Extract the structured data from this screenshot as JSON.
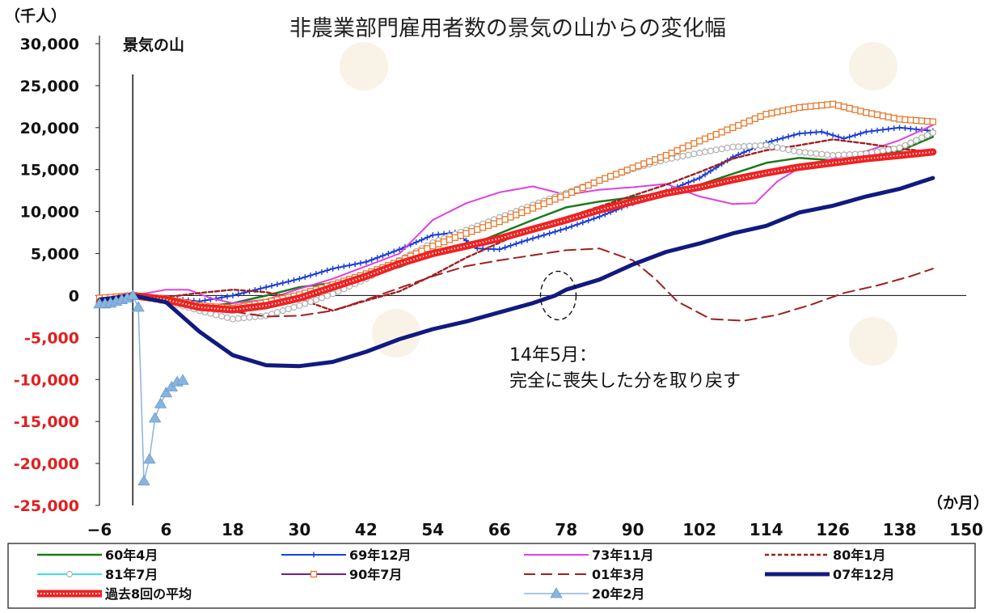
{
  "chart_data": {
    "type": "line",
    "title": "非農業部門雇用者数の景気の山からの変化幅",
    "ylabel": "（千人）",
    "xlabel": "（か月）",
    "peak_label": "景気の山",
    "xlim": [
      -6,
      150
    ],
    "ylim": [
      -25000,
      30000
    ],
    "x_ticks": [
      "−6",
      "6",
      "18",
      "30",
      "42",
      "54",
      "66",
      "78",
      "90",
      "102",
      "114",
      "126",
      "138",
      "150"
    ],
    "x_tick_values": [
      -6,
      6,
      18,
      30,
      42,
      54,
      66,
      78,
      90,
      102,
      114,
      126,
      138,
      150
    ],
    "y_ticks": [
      {
        "value": 30000,
        "label": "30,000"
      },
      {
        "value": 25000,
        "label": "25,000"
      },
      {
        "value": 20000,
        "label": "20,000"
      },
      {
        "value": 15000,
        "label": "15,000"
      },
      {
        "value": 10000,
        "label": "10,000"
      },
      {
        "value": 5000,
        "label": "5,000"
      },
      {
        "value": 0,
        "label": "0"
      },
      {
        "value": -5000,
        "label": "-5,000"
      },
      {
        "value": -10000,
        "label": "-10,000"
      },
      {
        "value": -15000,
        "label": "-15,000"
      },
      {
        "value": -20000,
        "label": "-20,000"
      },
      {
        "value": -25000,
        "label": "-25,000"
      }
    ],
    "annotation": {
      "line1": "14年5月：",
      "line2": "完全に喪失した分を取り戻す",
      "x": 76,
      "y": 0
    },
    "series": [
      {
        "name": "60年4月",
        "color": "#1a7a1a",
        "style": "solid",
        "width": 2.5,
        "marker": "none",
        "points": [
          [
            -6,
            -1200
          ],
          [
            0,
            0
          ],
          [
            6,
            -500
          ],
          [
            12,
            -1400
          ],
          [
            18,
            -900
          ],
          [
            24,
            0
          ],
          [
            30,
            1000
          ],
          [
            36,
            1500
          ],
          [
            42,
            2400
          ],
          [
            48,
            3400
          ],
          [
            54,
            5000
          ],
          [
            60,
            5800
          ],
          [
            66,
            7400
          ],
          [
            72,
            9000
          ],
          [
            78,
            10500
          ],
          [
            84,
            11200
          ],
          [
            90,
            11700
          ],
          [
            96,
            12300
          ],
          [
            102,
            13200
          ],
          [
            108,
            14500
          ],
          [
            114,
            15800
          ],
          [
            120,
            16400
          ],
          [
            126,
            16100
          ],
          [
            132,
            16600
          ],
          [
            138,
            17200
          ],
          [
            144,
            18900
          ]
        ]
      },
      {
        "name": "69年12月",
        "color": "#1a3fd6",
        "style": "solid",
        "width": 2,
        "marker": "plus",
        "points": [
          [
            -6,
            -700
          ],
          [
            0,
            0
          ],
          [
            6,
            -300
          ],
          [
            12,
            -700
          ],
          [
            18,
            0
          ],
          [
            24,
            1000
          ],
          [
            30,
            2000
          ],
          [
            36,
            3200
          ],
          [
            42,
            4000
          ],
          [
            48,
            5500
          ],
          [
            54,
            7200
          ],
          [
            58,
            7500
          ],
          [
            62,
            5600
          ],
          [
            66,
            5500
          ],
          [
            70,
            6400
          ],
          [
            74,
            7200
          ],
          [
            78,
            8000
          ],
          [
            84,
            9400
          ],
          [
            90,
            11000
          ],
          [
            96,
            12400
          ],
          [
            102,
            14000
          ],
          [
            108,
            16500
          ],
          [
            114,
            18200
          ],
          [
            120,
            19300
          ],
          [
            124,
            19500
          ],
          [
            128,
            18700
          ],
          [
            132,
            19500
          ],
          [
            138,
            20000
          ],
          [
            144,
            19600
          ]
        ]
      },
      {
        "name": "73年11月",
        "color": "#e040e0",
        "style": "solid",
        "width": 2,
        "marker": "none",
        "points": [
          [
            -6,
            -900
          ],
          [
            0,
            0
          ],
          [
            6,
            700
          ],
          [
            10,
            700
          ],
          [
            14,
            -300
          ],
          [
            18,
            -900
          ],
          [
            24,
            -500
          ],
          [
            30,
            800
          ],
          [
            36,
            2000
          ],
          [
            42,
            3500
          ],
          [
            48,
            5000
          ],
          [
            54,
            9000
          ],
          [
            60,
            11000
          ],
          [
            66,
            12300
          ],
          [
            72,
            13000
          ],
          [
            78,
            12000
          ],
          [
            84,
            12600
          ],
          [
            90,
            12900
          ],
          [
            96,
            13300
          ],
          [
            102,
            11800
          ],
          [
            108,
            10900
          ],
          [
            112,
            11000
          ],
          [
            116,
            13600
          ],
          [
            120,
            15200
          ],
          [
            126,
            16300
          ],
          [
            132,
            17200
          ],
          [
            138,
            18500
          ],
          [
            144,
            20300
          ]
        ]
      },
      {
        "name": "80年1月",
        "color": "#a02020",
        "style": "dotted",
        "width": 2.4,
        "marker": "none",
        "points": [
          [
            -6,
            -600
          ],
          [
            0,
            0
          ],
          [
            6,
            -200
          ],
          [
            12,
            300
          ],
          [
            18,
            700
          ],
          [
            24,
            400
          ],
          [
            30,
            -400
          ],
          [
            36,
            -1800
          ],
          [
            42,
            -600
          ],
          [
            48,
            500
          ],
          [
            54,
            2400
          ],
          [
            60,
            4500
          ],
          [
            66,
            6300
          ],
          [
            72,
            8000
          ],
          [
            78,
            9300
          ],
          [
            84,
            10600
          ],
          [
            90,
            11900
          ],
          [
            96,
            13200
          ],
          [
            102,
            14700
          ],
          [
            108,
            16300
          ],
          [
            114,
            17300
          ],
          [
            120,
            17900
          ],
          [
            126,
            18600
          ],
          [
            132,
            18100
          ],
          [
            138,
            17500
          ],
          [
            144,
            17100
          ]
        ]
      },
      {
        "name": "81年7月",
        "color": "#40e0e0",
        "style": "solid",
        "width": 2,
        "marker": "circle",
        "points": [
          [
            -6,
            -1000
          ],
          [
            0,
            0
          ],
          [
            6,
            -700
          ],
          [
            12,
            -1800
          ],
          [
            18,
            -2800
          ],
          [
            24,
            -2400
          ],
          [
            30,
            -1200
          ],
          [
            36,
            200
          ],
          [
            42,
            2000
          ],
          [
            48,
            4200
          ],
          [
            54,
            6300
          ],
          [
            60,
            7800
          ],
          [
            66,
            9300
          ],
          [
            72,
            10800
          ],
          [
            78,
            12200
          ],
          [
            84,
            13700
          ],
          [
            90,
            15100
          ],
          [
            96,
            16200
          ],
          [
            102,
            17000
          ],
          [
            108,
            17700
          ],
          [
            114,
            17900
          ],
          [
            120,
            17100
          ],
          [
            126,
            16700
          ],
          [
            132,
            16900
          ],
          [
            138,
            17600
          ],
          [
            144,
            19400
          ]
        ]
      },
      {
        "name": "90年7月",
        "color": "#7a1a8a",
        "style": "solid",
        "width": 2,
        "marker": "square",
        "points": [
          [
            -6,
            -300
          ],
          [
            0,
            0
          ],
          [
            6,
            -400
          ],
          [
            12,
            -1200
          ],
          [
            18,
            -1500
          ],
          [
            24,
            -800
          ],
          [
            30,
            100
          ],
          [
            36,
            1300
          ],
          [
            42,
            2600
          ],
          [
            48,
            4100
          ],
          [
            54,
            5900
          ],
          [
            60,
            7400
          ],
          [
            66,
            8800
          ],
          [
            72,
            10400
          ],
          [
            78,
            12000
          ],
          [
            84,
            13700
          ],
          [
            90,
            15200
          ],
          [
            96,
            16700
          ],
          [
            102,
            18400
          ],
          [
            108,
            20000
          ],
          [
            114,
            21600
          ],
          [
            120,
            22400
          ],
          [
            126,
            22800
          ],
          [
            132,
            21800
          ],
          [
            138,
            21000
          ],
          [
            144,
            20700
          ]
        ]
      },
      {
        "name": "01年3月",
        "color": "#a02020",
        "style": "dashed",
        "width": 2,
        "marker": "none",
        "points": [
          [
            -6,
            -300
          ],
          [
            0,
            0
          ],
          [
            6,
            -700
          ],
          [
            12,
            -1300
          ],
          [
            18,
            -1900
          ],
          [
            24,
            -2500
          ],
          [
            30,
            -2400
          ],
          [
            36,
            -1800
          ],
          [
            42,
            -500
          ],
          [
            48,
            900
          ],
          [
            54,
            2300
          ],
          [
            60,
            3500
          ],
          [
            66,
            4200
          ],
          [
            72,
            4800
          ],
          [
            78,
            5400
          ],
          [
            84,
            5600
          ],
          [
            90,
            4200
          ],
          [
            94,
            2000
          ],
          [
            98,
            -700
          ],
          [
            104,
            -2800
          ],
          [
            110,
            -3000
          ],
          [
            116,
            -2300
          ],
          [
            122,
            -1100
          ],
          [
            128,
            300
          ],
          [
            134,
            1200
          ],
          [
            140,
            2300
          ],
          [
            144,
            3200
          ]
        ]
      },
      {
        "name": "07年12月",
        "color": "#101a80",
        "style": "solid",
        "width": 5,
        "marker": "none",
        "points": [
          [
            -6,
            -500
          ],
          [
            0,
            0
          ],
          [
            6,
            -800
          ],
          [
            12,
            -4300
          ],
          [
            18,
            -7100
          ],
          [
            24,
            -8300
          ],
          [
            30,
            -8400
          ],
          [
            36,
            -7900
          ],
          [
            42,
            -6700
          ],
          [
            48,
            -5200
          ],
          [
            54,
            -4000
          ],
          [
            60,
            -3100
          ],
          [
            66,
            -2000
          ],
          [
            72,
            -900
          ],
          [
            76,
            0
          ],
          [
            78,
            700
          ],
          [
            84,
            1900
          ],
          [
            90,
            3700
          ],
          [
            96,
            5200
          ],
          [
            102,
            6200
          ],
          [
            108,
            7400
          ],
          [
            114,
            8300
          ],
          [
            120,
            9900
          ],
          [
            126,
            10700
          ],
          [
            132,
            11800
          ],
          [
            138,
            12700
          ],
          [
            144,
            14000
          ]
        ]
      },
      {
        "name": "過去8回の平均",
        "color": "#ee2222",
        "style": "band",
        "width": 8,
        "marker": "none",
        "points": [
          [
            -6,
            -800
          ],
          [
            0,
            0
          ],
          [
            6,
            -500
          ],
          [
            12,
            -1400
          ],
          [
            18,
            -1700
          ],
          [
            24,
            -1200
          ],
          [
            30,
            -300
          ],
          [
            36,
            1000
          ],
          [
            42,
            2300
          ],
          [
            48,
            3800
          ],
          [
            54,
            5000
          ],
          [
            60,
            5900
          ],
          [
            66,
            6800
          ],
          [
            72,
            7900
          ],
          [
            78,
            9000
          ],
          [
            84,
            10200
          ],
          [
            90,
            11200
          ],
          [
            96,
            12200
          ],
          [
            102,
            12900
          ],
          [
            108,
            13800
          ],
          [
            114,
            14600
          ],
          [
            120,
            15300
          ],
          [
            126,
            15800
          ],
          [
            132,
            16300
          ],
          [
            138,
            16700
          ],
          [
            144,
            17100
          ]
        ]
      },
      {
        "name": "20年2月",
        "color": "#88b4e0",
        "style": "solid",
        "width": 1.5,
        "marker": "triangle",
        "points": [
          [
            -6,
            -1000
          ],
          [
            -5,
            -1000
          ],
          [
            -4,
            -900
          ],
          [
            -3,
            -700
          ],
          [
            -2,
            -500
          ],
          [
            -1,
            -300
          ],
          [
            0,
            0
          ],
          [
            1,
            -1400
          ],
          [
            2,
            -22100
          ],
          [
            3,
            -19500
          ],
          [
            4,
            -14600
          ],
          [
            5,
            -12900
          ],
          [
            6,
            -11600
          ],
          [
            7,
            -10900
          ],
          [
            8,
            -10300
          ],
          [
            9,
            -10100
          ]
        ]
      }
    ]
  }
}
